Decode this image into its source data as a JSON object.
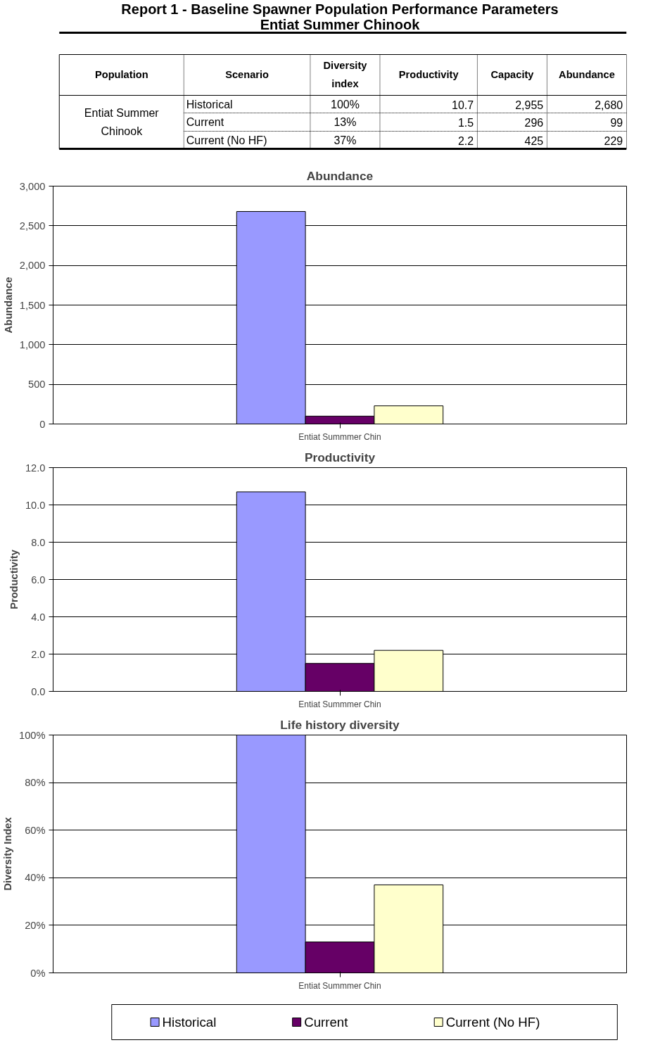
{
  "chart_data": [
    {
      "type": "other",
      "title": "Report 1 - Baseline Spawner Population Performance Parameters",
      "subtitle": "Entiat Summer Chinook",
      "annotations": [
        "Population",
        "Scenario",
        "Diversity index",
        "Productivity",
        "Capacity",
        "Abundance",
        "Entiat Summer Chinook",
        "Historical",
        "100%",
        "10.7",
        "2,955",
        "2,680",
        "Current",
        "13%",
        "1.5",
        "296",
        "99",
        "Current (No HF)",
        "37%",
        "2.2",
        "425",
        "229"
      ]
    },
    {
      "type": "bar",
      "title": "Abundance",
      "ylabel": "Abundance",
      "categories": [
        "Entiat Summmer Chin"
      ],
      "series": [
        {
          "color": "#9999ff",
          "values": [
            2680
          ]
        },
        {
          "color": "#660066",
          "values": [
            99
          ]
        },
        {
          "color": "#ffffcc",
          "values": [
            229
          ]
        }
      ],
      "ylim": [
        0,
        3000
      ],
      "yticks": [
        0,
        500,
        {
          "value": 1000,
          "label": "1,000"
        },
        {
          "value": 1500,
          "label": "1,500"
        },
        {
          "value": 2000,
          "label": "2,000"
        },
        {
          "value": 2500,
          "label": "2,500"
        },
        {
          "value": 3000,
          "label": "3,000"
        }
      ],
      "grid": "y"
    },
    {
      "type": "bar",
      "title": "Productivity",
      "ylabel": "Productivity",
      "categories": [
        "Entiat Summmer Chin"
      ],
      "series": [
        {
          "color": "#9999ff",
          "values": [
            10.7
          ]
        },
        {
          "color": "#660066",
          "values": [
            1.5
          ]
        },
        {
          "color": "#ffffcc",
          "values": [
            2.2
          ]
        }
      ],
      "ylim": [
        0,
        12
      ],
      "yticks": [
        {
          "value": 0,
          "label": "0.0"
        },
        {
          "value": 2,
          "label": "2.0"
        },
        {
          "value": 4,
          "label": "4.0"
        },
        {
          "value": 6,
          "label": "6.0"
        },
        {
          "value": 8,
          "label": "8.0"
        },
        {
          "value": 10,
          "label": "10.0"
        },
        {
          "value": 12,
          "label": "12.0"
        }
      ],
      "grid": "y"
    },
    {
      "type": "bar",
      "title": "Life history diversity",
      "ylabel": "Diversity Index",
      "categories": [
        "Entiat Summmer Chin"
      ],
      "series": [
        {
          "name": "Historical",
          "color": "#9999ff",
          "values": [
            100
          ]
        },
        {
          "name": "Current",
          "color": "#660066",
          "values": [
            13
          ]
        },
        {
          "name": "Current (No HF)",
          "color": "#ffffcc",
          "values": [
            37
          ]
        }
      ],
      "ylim": [
        0,
        100
      ],
      "yticks": [
        {
          "value": 0,
          "label": "0%"
        },
        {
          "value": 20,
          "label": "20%"
        },
        {
          "value": 40,
          "label": "40%"
        },
        {
          "value": 60,
          "label": "60%"
        },
        {
          "value": 80,
          "label": "80%"
        },
        {
          "value": 100,
          "label": "100%"
        }
      ],
      "grid": "y",
      "legend": "bottom"
    }
  ]
}
